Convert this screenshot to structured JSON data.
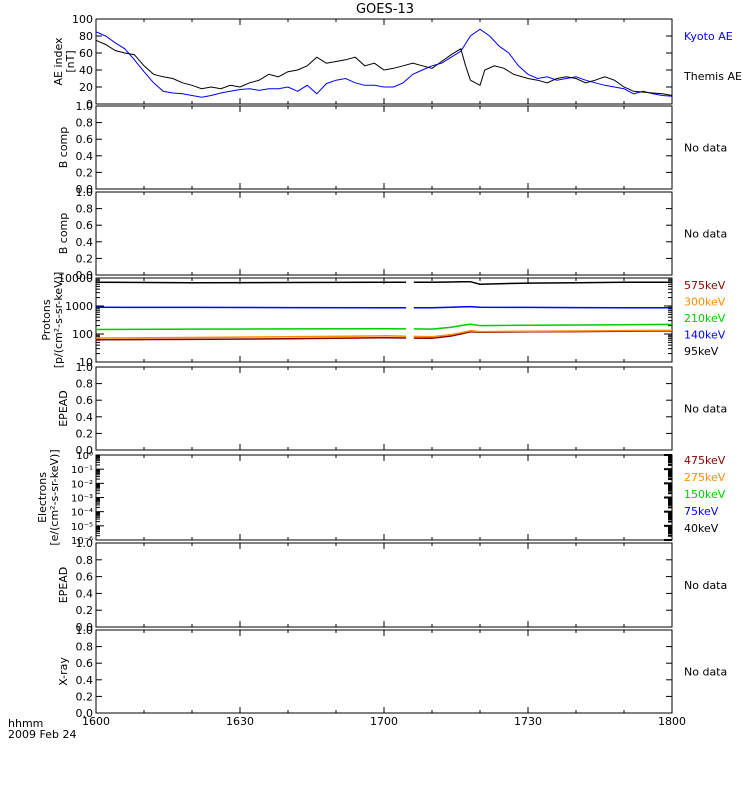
{
  "title": "GOES-13",
  "footer": {
    "time_label": "hhmm",
    "date": "2009 Feb 24"
  },
  "x_axis": {
    "range_minutes": [
      0,
      120
    ],
    "tick_minutes": [
      0,
      30,
      60,
      90,
      120
    ],
    "tick_labels": [
      "1600",
      "1630",
      "1700",
      "1730",
      "1800"
    ]
  },
  "chart_data": [
    {
      "type": "line",
      "panel": "ae",
      "ylabel_line1": "AE index",
      "ylabel_line2": "[nT]",
      "ylim": [
        0,
        100
      ],
      "yticks": [
        0,
        20,
        40,
        60,
        80,
        100
      ],
      "series": [
        {
          "name": "Kyoto AE",
          "color": "#0000ff",
          "x": [
            0,
            2,
            4,
            6,
            8,
            10,
            12,
            14,
            16,
            18,
            20,
            22,
            24,
            26,
            28,
            30,
            32,
            34,
            36,
            38,
            40,
            42,
            44,
            46,
            48,
            50,
            52,
            54,
            56,
            58,
            60,
            62,
            64,
            66,
            68,
            70,
            72,
            74,
            76,
            78,
            80,
            82,
            84,
            86,
            88,
            90,
            92,
            94,
            96,
            98,
            100,
            102,
            104,
            106,
            108,
            110,
            112,
            114,
            116,
            118,
            120
          ],
          "y": [
            85,
            80,
            72,
            65,
            52,
            38,
            25,
            15,
            13,
            12,
            10,
            8,
            10,
            13,
            15,
            17,
            18,
            16,
            18,
            18,
            20,
            15,
            22,
            12,
            24,
            28,
            30,
            25,
            22,
            22,
            20,
            20,
            25,
            35,
            40,
            45,
            48,
            55,
            62,
            80,
            88,
            80,
            68,
            60,
            45,
            35,
            30,
            32,
            28,
            30,
            32,
            28,
            25,
            22,
            20,
            18,
            12,
            15,
            12,
            10,
            9
          ]
        },
        {
          "name": "Themis AE",
          "color": "#000000",
          "x": [
            0,
            2,
            4,
            6,
            8,
            10,
            12,
            14,
            16,
            18,
            20,
            22,
            24,
            26,
            28,
            30,
            32,
            34,
            36,
            38,
            40,
            42,
            44,
            46,
            48,
            50,
            52,
            54,
            56,
            58,
            60,
            62,
            64,
            66,
            68,
            70,
            72,
            74,
            76,
            77,
            78,
            80,
            81,
            83,
            85,
            87,
            90,
            92,
            94,
            96,
            98,
            100,
            102,
            104,
            106,
            108,
            110,
            112,
            114,
            116,
            118,
            120
          ],
          "y": [
            75,
            70,
            63,
            60,
            58,
            45,
            35,
            32,
            30,
            25,
            22,
            18,
            20,
            18,
            22,
            20,
            25,
            28,
            35,
            32,
            38,
            40,
            45,
            55,
            48,
            50,
            52,
            55,
            45,
            48,
            40,
            42,
            45,
            48,
            45,
            42,
            50,
            58,
            65,
            45,
            28,
            22,
            40,
            45,
            42,
            35,
            30,
            28,
            25,
            30,
            32,
            30,
            25,
            28,
            32,
            28,
            20,
            15,
            14,
            13,
            12,
            10
          ]
        }
      ],
      "legend": [
        "Kyoto AE",
        "Themis AE"
      ]
    },
    {
      "type": "line",
      "panel": "b1",
      "ylabel": "B comp",
      "ylim": [
        0,
        1
      ],
      "yticks": [
        0,
        0.2,
        0.4,
        0.6,
        0.8,
        1
      ],
      "ytick_labels": [
        "0.0",
        "0.2",
        "0.4",
        "0.6",
        "0.8",
        "1.0"
      ],
      "status": "No data"
    },
    {
      "type": "line",
      "panel": "b2",
      "ylabel": "B comp",
      "ylim": [
        0,
        1
      ],
      "yticks": [
        0,
        0.2,
        0.4,
        0.6,
        0.8,
        1
      ],
      "ytick_labels": [
        "0.0",
        "0.2",
        "0.4",
        "0.6",
        "0.8",
        "1.0"
      ],
      "status": "No data"
    },
    {
      "type": "line",
      "panel": "protons",
      "scale": "log",
      "ylabel_line1": "Protons",
      "ylabel_line2": "[p/(cm²-s-sr-keV)]",
      "ylim": [
        10,
        10000
      ],
      "yticks": [
        10,
        100,
        1000,
        10000
      ],
      "ytick_labels": [
        "10",
        "100",
        "1000",
        "10000"
      ],
      "gap_minutes": [
        64.6,
        66.2
      ],
      "series": [
        {
          "name": "575keV",
          "color": "#8b0000",
          "x": [
            0,
            20,
            40,
            60,
            70,
            74,
            76,
            78,
            80,
            90,
            100,
            110,
            120
          ],
          "y": [
            62,
            64,
            68,
            74,
            70,
            85,
            100,
            120,
            116,
            120,
            122,
            126,
            128
          ]
        },
        {
          "name": "300keV",
          "color": "#ff8c00",
          "x": [
            0,
            20,
            40,
            60,
            70,
            74,
            76,
            78,
            80,
            90,
            100,
            110,
            120
          ],
          "y": [
            72,
            75,
            80,
            86,
            80,
            95,
            110,
            130,
            122,
            126,
            128,
            132,
            134
          ]
        },
        {
          "name": "210keV",
          "color": "#00cc00",
          "x": [
            0,
            20,
            40,
            60,
            70,
            74,
            76,
            78,
            80,
            90,
            100,
            110,
            120
          ],
          "y": [
            145,
            150,
            152,
            155,
            150,
            175,
            200,
            225,
            200,
            205,
            210,
            215,
            220
          ]
        },
        {
          "name": "140keV",
          "color": "#0000ff",
          "x": [
            0,
            20,
            40,
            60,
            70,
            74,
            76,
            78,
            80,
            90,
            100,
            110,
            120
          ],
          "y": [
            900,
            890,
            880,
            870,
            860,
            900,
            930,
            950,
            900,
            890,
            880,
            870,
            860
          ]
        },
        {
          "name": "95keV",
          "color": "#000000",
          "x": [
            0,
            20,
            40,
            60,
            70,
            74,
            76,
            78,
            80,
            90,
            100,
            110,
            120
          ],
          "y": [
            7000,
            6800,
            6900,
            7100,
            7000,
            7200,
            7300,
            7400,
            6000,
            6600,
            6800,
            7000,
            7100
          ]
        }
      ],
      "legend": [
        "575keV",
        "300keV",
        "210keV",
        "140keV",
        "95keV"
      ]
    },
    {
      "type": "line",
      "panel": "epead1",
      "ylabel": "EPEAD",
      "ylim": [
        0,
        1
      ],
      "yticks": [
        0,
        0.2,
        0.4,
        0.6,
        0.8,
        1
      ],
      "ytick_labels": [
        "0.0",
        "0.2",
        "0.4",
        "0.6",
        "0.8",
        "1.0"
      ],
      "status": "No data"
    },
    {
      "type": "line",
      "panel": "electrons",
      "scale": "log",
      "ylabel_line1": "Electrons",
      "ylabel_line2": "[e/(cm²-s-sr-keV)]",
      "ylim": [
        1e-06,
        1
      ],
      "ytick_exponents": [
        0,
        -1,
        -2,
        -3,
        -4,
        -5,
        -6
      ],
      "ytick_labels": [
        "10⁰",
        "10⁻¹",
        "10⁻²",
        "10⁻³",
        "10⁻⁴",
        "10⁻⁵",
        "10⁻⁶"
      ],
      "legend": [
        {
          "name": "475keV",
          "color": "#8b0000"
        },
        {
          "name": "275keV",
          "color": "#ff8c00"
        },
        {
          "name": "150keV",
          "color": "#00cc00"
        },
        {
          "name": "75keV",
          "color": "#0000ff"
        },
        {
          "name": "40keV",
          "color": "#000000"
        }
      ]
    },
    {
      "type": "line",
      "panel": "epead2",
      "ylabel": "EPEAD",
      "ylim": [
        0,
        1
      ],
      "yticks": [
        0,
        0.2,
        0.4,
        0.6,
        0.8,
        1
      ],
      "ytick_labels": [
        "0.0",
        "0.2",
        "0.4",
        "0.6",
        "0.8",
        "1.0"
      ],
      "status": "No data"
    },
    {
      "type": "line",
      "panel": "xray",
      "ylabel": "X-ray",
      "ylim": [
        0,
        1
      ],
      "yticks": [
        0,
        0.2,
        0.4,
        0.6,
        0.8,
        1
      ],
      "ytick_labels": [
        "0.0",
        "0.2",
        "0.4",
        "0.6",
        "0.8",
        "1.0"
      ],
      "status": "No data"
    }
  ],
  "legend_colors": {
    "Kyoto AE": "#0000ff",
    "Themis AE": "#000000",
    "575keV": "#8b0000",
    "300keV": "#ff8c00",
    "210keV": "#00cc00",
    "140keV": "#0000ff",
    "95keV": "#000000"
  }
}
